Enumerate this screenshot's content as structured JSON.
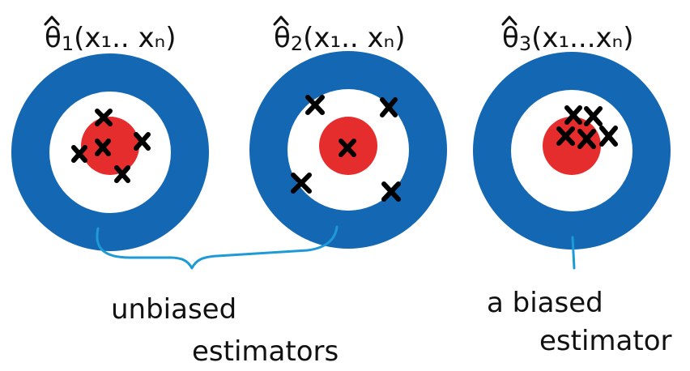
{
  "estimators": [
    {
      "id": "theta1",
      "symbol": "θ",
      "subscript": "1",
      "args": "(x₁.. xₙ)"
    },
    {
      "id": "theta2",
      "symbol": "θ",
      "subscript": "2",
      "args": "(x₁.. xₙ)"
    },
    {
      "id": "theta3",
      "symbol": "θ",
      "subscript": "3",
      "args": "(x₁...xₙ)"
    }
  ],
  "captions": {
    "unbiased_line1": "unbiased",
    "unbiased_line2": "estimators",
    "biased_line1": "a biased",
    "biased_line2": "estimator"
  },
  "colors": {
    "outer_ring": "#1467b3",
    "bullseye": "#e52d2d",
    "inner_ring": "#ffffff",
    "marks": "#000000",
    "brace": "#1e9ad6"
  }
}
